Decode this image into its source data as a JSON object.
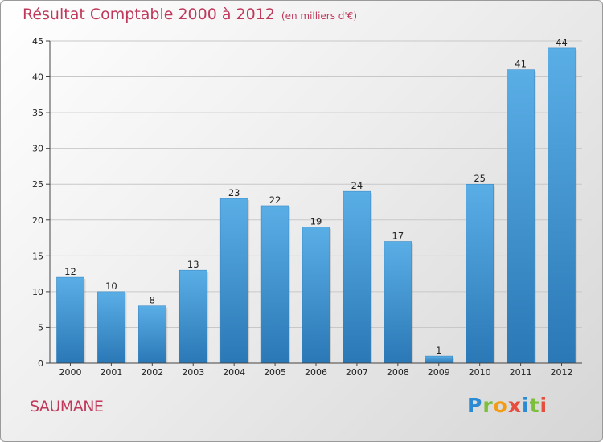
{
  "chart_data": {
    "type": "bar",
    "title": "Résultat Comptable 2000 à 2012",
    "subtitle": "(en milliers d'€)",
    "categories": [
      "2000",
      "2001",
      "2002",
      "2003",
      "2004",
      "2005",
      "2006",
      "2007",
      "2008",
      "2009",
      "2010",
      "2011",
      "2012"
    ],
    "values": [
      12,
      10,
      8,
      13,
      23,
      22,
      19,
      24,
      17,
      1,
      25,
      41,
      44
    ],
    "xlabel": "",
    "ylabel": "",
    "ylim": [
      0,
      45
    ],
    "yticks": [
      0,
      5,
      10,
      15,
      20,
      25,
      30,
      35,
      40,
      45
    ],
    "grid": true,
    "bar_color_top": "#5aaee6",
    "bar_color_bottom": "#2a78b6"
  },
  "footer": {
    "commune": "SAUMANE",
    "brand_letters": [
      {
        "ch": "P",
        "color": "#2a8ad4"
      },
      {
        "ch": "r",
        "color": "#7bbf3a"
      },
      {
        "ch": "o",
        "color": "#f39c12"
      },
      {
        "ch": "x",
        "color": "#e74c3c"
      },
      {
        "ch": "i",
        "color": "#2a8ad4"
      },
      {
        "ch": "t",
        "color": "#7bbf3a"
      },
      {
        "ch": "i",
        "color": "#e74c3c"
      }
    ]
  },
  "colors": {
    "title": "#c0395b",
    "grid": "#c8c8c8",
    "axis": "#444444"
  }
}
